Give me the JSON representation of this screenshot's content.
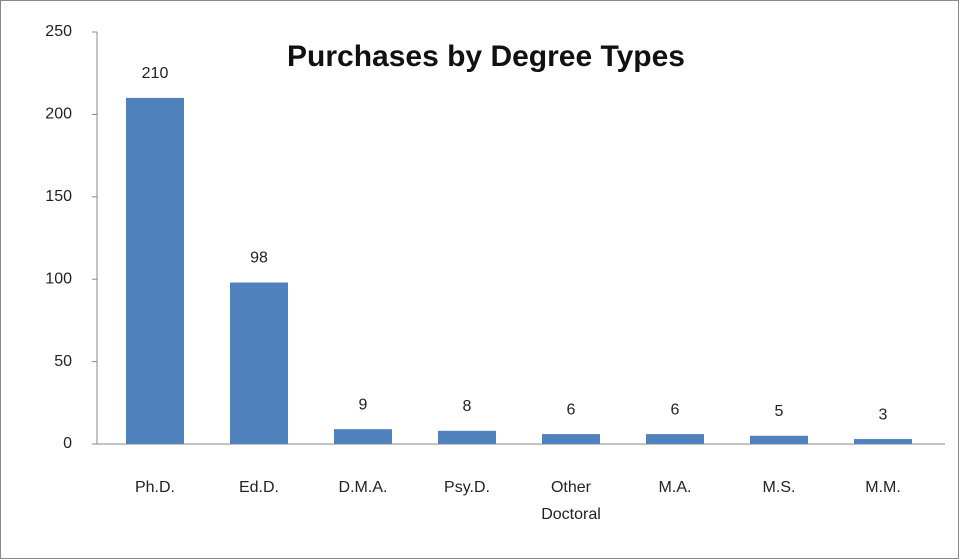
{
  "chart_data": {
    "type": "bar",
    "title": "Purchases by Degree Types",
    "categories": [
      "Ph.D.",
      "Ed.D.",
      "D.M.A.",
      "Psy.D.",
      "Other Doctoral",
      "M.A.",
      "M.S.",
      "M.M."
    ],
    "values": [
      210,
      98,
      9,
      8,
      6,
      6,
      5,
      3
    ],
    "color": "#4f81bd",
    "ylim": [
      0,
      250
    ],
    "yticks": [
      0,
      50,
      100,
      150,
      200,
      250
    ],
    "grid": false
  }
}
